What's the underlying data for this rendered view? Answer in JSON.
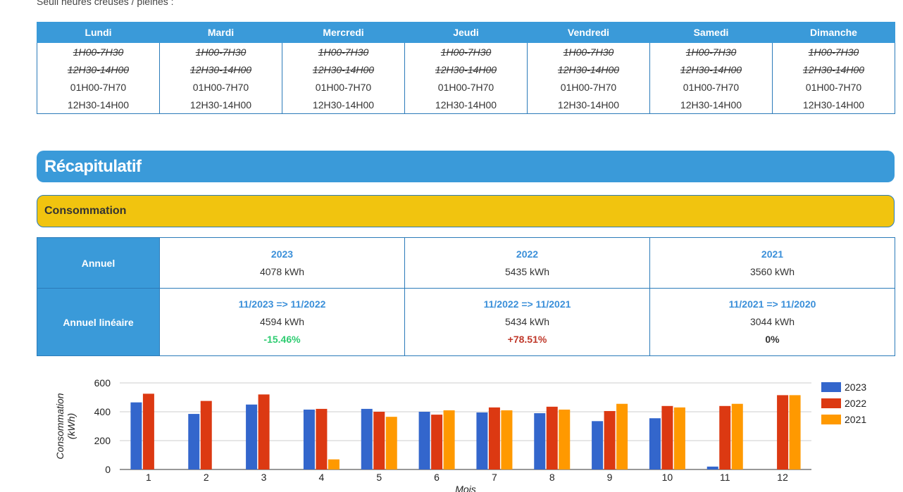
{
  "intro": "Seuil heures creuses / pleines :",
  "schedule": {
    "headers": [
      "Lundi",
      "Mardi",
      "Mercredi",
      "Jeudi",
      "Vendredi",
      "Samedi",
      "Dimanche"
    ],
    "rows": [
      [
        "1H00-7H30",
        "1H00-7H30",
        "1H00-7H30",
        "1H00-7H30",
        "1H00-7H30",
        "1H00-7H30",
        "1H00-7H30"
      ],
      [
        "12H30-14H00",
        "12H30-14H00",
        "12H30-14H00",
        "12H30-14H00",
        "12H30-14H00",
        "12H30-14H00",
        "12H30-14H00"
      ],
      [
        "01H00-7H70",
        "01H00-7H70",
        "01H00-7H70",
        "01H00-7H70",
        "01H00-7H70",
        "01H00-7H70",
        "01H00-7H70"
      ],
      [
        "12H30-14H00",
        "12H30-14H00",
        "12H30-14H00",
        "12H30-14H00",
        "12H30-14H00",
        "12H30-14H00",
        "12H30-14H00"
      ]
    ],
    "struck_rows": [
      0,
      1
    ]
  },
  "recap_title": "Récapitulatif",
  "section_title": "Consommation",
  "summary": {
    "rows": [
      {
        "label": "Annuel",
        "cells": [
          {
            "title": "2023",
            "value": "4078 kWh"
          },
          {
            "title": "2022",
            "value": "5435 kWh"
          },
          {
            "title": "2021",
            "value": "3560 kWh"
          }
        ]
      },
      {
        "label": "Annuel linéaire",
        "cells": [
          {
            "title": "11/2023 => 11/2022",
            "value": "4594 kWh",
            "change": "-15.46%",
            "color": "#2ecc71"
          },
          {
            "title": "11/2022 => 11/2021",
            "value": "5434 kWh",
            "change": "+78.51%",
            "color": "#c0392b"
          },
          {
            "title": "11/2021 => 11/2020",
            "value": "3044 kWh",
            "change": "0%",
            "color": "#333333"
          }
        ]
      }
    ]
  },
  "chart_data": {
    "type": "bar",
    "xlabel": "Mois",
    "ylabel": [
      "Consommation",
      "(kWh)"
    ],
    "categories": [
      "1",
      "2",
      "3",
      "4",
      "5",
      "6",
      "7",
      "8",
      "9",
      "10",
      "11",
      "12"
    ],
    "series": [
      {
        "name": "2023",
        "color": "#3366cc",
        "values": [
          465,
          385,
          450,
          415,
          420,
          400,
          395,
          390,
          335,
          355,
          20,
          null
        ]
      },
      {
        "name": "2022",
        "color": "#dc3912",
        "values": [
          525,
          475,
          520,
          420,
          400,
          380,
          430,
          435,
          405,
          440,
          440,
          515
        ]
      },
      {
        "name": "2021",
        "color": "#ff9900",
        "values": [
          null,
          null,
          null,
          70,
          365,
          410,
          410,
          415,
          455,
          430,
          455,
          515
        ]
      }
    ],
    "ylim": [
      0,
      600
    ],
    "yticks": [
      0,
      200,
      400,
      600
    ],
    "grid": true
  }
}
